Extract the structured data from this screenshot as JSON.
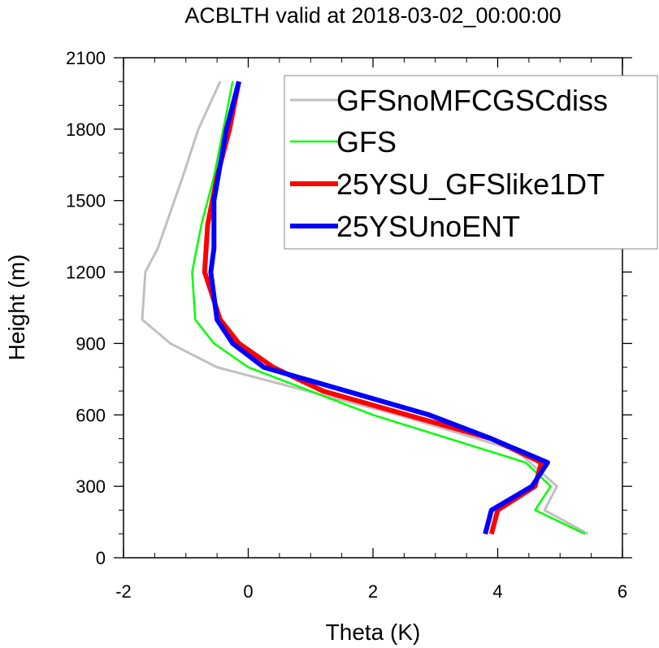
{
  "chart_data": {
    "type": "line",
    "title": "ACBLTH valid at 2018-03-02_00:00:00",
    "xlabel": "Theta (K)",
    "ylabel": "Height (m)",
    "xlim": [
      -2,
      6
    ],
    "ylim": [
      0,
      2100
    ],
    "xticks": [
      -2,
      0,
      2,
      4,
      6
    ],
    "yticks": [
      0,
      300,
      600,
      900,
      1200,
      1500,
      1800,
      2100
    ],
    "xtick_labels": [
      "-2",
      "0",
      "2",
      "4",
      "6"
    ],
    "ytick_labels": [
      "0",
      "300",
      "600",
      "900",
      "1200",
      "1500",
      "1800",
      "2100"
    ],
    "grid": false,
    "legend_position": "top-right",
    "series": [
      {
        "name": "GFSnoMFCGSCdiss",
        "color": "#c0c0c0",
        "width": 3,
        "points": [
          [
            5.45,
            100
          ],
          [
            4.75,
            200
          ],
          [
            4.95,
            300
          ],
          [
            4.3,
            450
          ],
          [
            2.4,
            600
          ],
          [
            -0.5,
            800
          ],
          [
            -1.25,
            900
          ],
          [
            -1.7,
            1000
          ],
          [
            -1.65,
            1200
          ],
          [
            -1.45,
            1300
          ],
          [
            -1.05,
            1600
          ],
          [
            -0.8,
            1800
          ],
          [
            -0.45,
            2000
          ]
        ]
      },
      {
        "name": "GFS",
        "color": "#00ff00",
        "width": 2.5,
        "points": [
          [
            5.4,
            100
          ],
          [
            4.6,
            200
          ],
          [
            4.85,
            300
          ],
          [
            4.45,
            400
          ],
          [
            2.0,
            600
          ],
          [
            0.0,
            800
          ],
          [
            -0.55,
            900
          ],
          [
            -0.85,
            1000
          ],
          [
            -0.9,
            1200
          ],
          [
            -0.75,
            1400
          ],
          [
            -0.55,
            1600
          ],
          [
            -0.4,
            1800
          ],
          [
            -0.25,
            2000
          ]
        ]
      },
      {
        "name": "25YSU_GFSlike1DT",
        "color": "#ff0000",
        "width": 6,
        "points": [
          [
            3.9,
            100
          ],
          [
            4.0,
            200
          ],
          [
            4.6,
            300
          ],
          [
            4.7,
            400
          ],
          [
            3.9,
            500
          ],
          [
            1.2,
            700
          ],
          [
            0.4,
            800
          ],
          [
            -0.15,
            900
          ],
          [
            -0.45,
            1000
          ],
          [
            -0.7,
            1200
          ],
          [
            -0.65,
            1400
          ],
          [
            -0.5,
            1600
          ],
          [
            -0.3,
            1800
          ],
          [
            -0.15,
            2000
          ]
        ]
      },
      {
        "name": "25YSUnoENT",
        "color": "#0000ff",
        "width": 6,
        "points": [
          [
            3.8,
            100
          ],
          [
            3.9,
            200
          ],
          [
            4.55,
            300
          ],
          [
            4.8,
            400
          ],
          [
            3.9,
            500
          ],
          [
            2.9,
            600
          ],
          [
            0.25,
            800
          ],
          [
            -0.25,
            900
          ],
          [
            -0.5,
            1000
          ],
          [
            -0.6,
            1200
          ],
          [
            -0.55,
            1300
          ],
          [
            -0.55,
            1500
          ],
          [
            -0.35,
            1800
          ],
          [
            -0.15,
            2000
          ]
        ]
      }
    ]
  }
}
